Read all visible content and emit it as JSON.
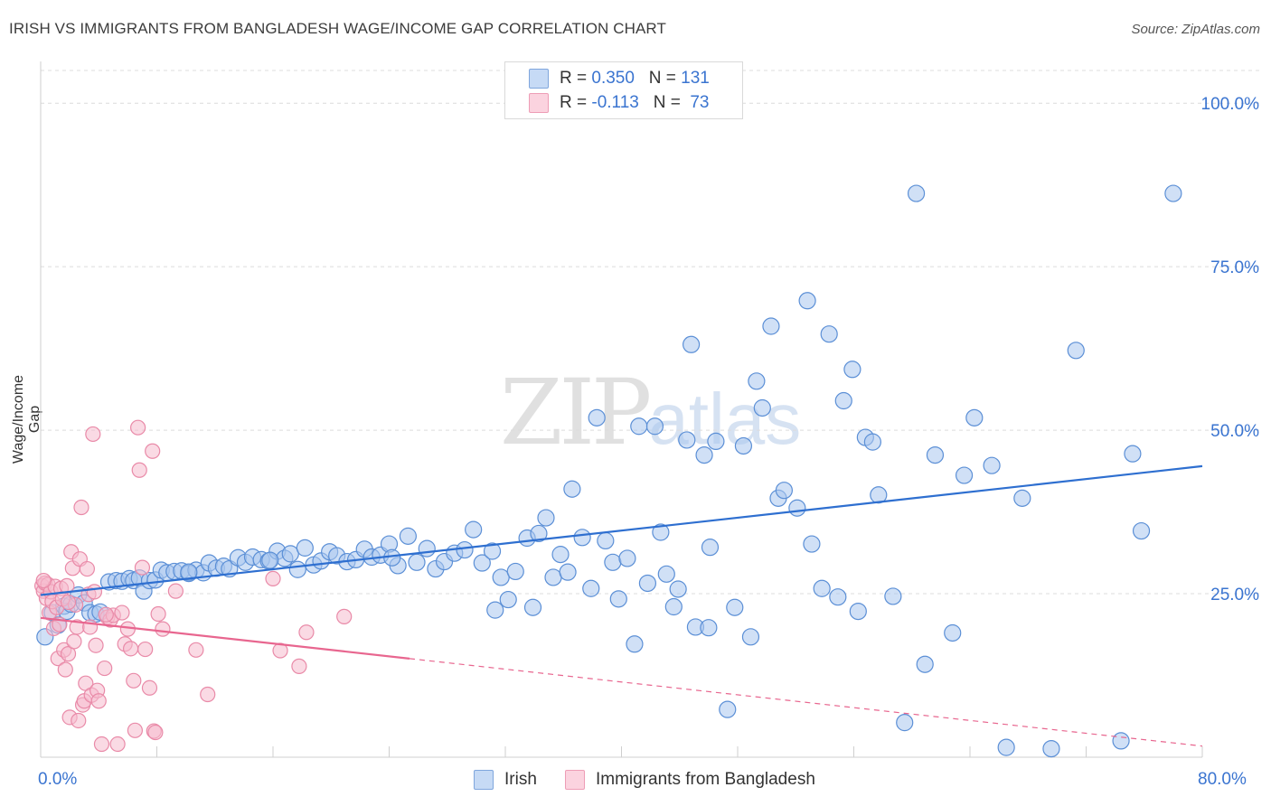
{
  "title": "IRISH VS IMMIGRANTS FROM BANGLADESH WAGE/INCOME GAP CORRELATION CHART",
  "source": "Source: ZipAtlas.com",
  "watermark": {
    "main": "ZIP",
    "sub": "atlas"
  },
  "colors": {
    "irish_fill": "#a9c6ee",
    "irish_stroke": "#5b8fd6",
    "irish_line": "#2e6fd0",
    "bangla_fill": "#f6bccd",
    "bangla_stroke": "#e98aa8",
    "bangla_line": "#e8668f",
    "tick_text": "#3a74d0",
    "grid": "#dcdcdc"
  },
  "legend": {
    "irish": {
      "r_label": "R = ",
      "r_value": "0.350",
      "n_label": "N = ",
      "n_value": "131"
    },
    "bangladesh": {
      "r_label": "R = ",
      "r_value": "-0.113",
      "n_label": "N = ",
      "n_value": " 73"
    }
  },
  "chart_data": {
    "type": "scatter",
    "title": "IRISH VS IMMIGRANTS FROM BANGLADESH WAGE/INCOME GAP CORRELATION CHART",
    "xlabel": "",
    "ylabel": "Wage/Income Gap",
    "xlim": [
      0,
      80
    ],
    "ylim": [
      0,
      105
    ],
    "x_tick_labels": {
      "min": "0.0%",
      "max": "80.0%"
    },
    "y_ticks": [
      25,
      50,
      75,
      100
    ],
    "y_tick_labels": [
      "25.0%",
      "50.0%",
      "75.0%",
      "100.0%"
    ],
    "grid": true,
    "legend_position": "top-center",
    "series": [
      {
        "name": "Irish",
        "r": 0.35,
        "n": 131,
        "trend": {
          "x0": 0,
          "y0": 24.8,
          "x1": 80,
          "y1": 44.5,
          "solid_until": 80
        },
        "points": [
          [
            0.3,
            18.4
          ],
          [
            0.8,
            22.1
          ],
          [
            1.2,
            20.2
          ],
          [
            1.6,
            23.1
          ],
          [
            1.8,
            22.3
          ],
          [
            2.1,
            23.4
          ],
          [
            2.6,
            24.8
          ],
          [
            3.0,
            23.6
          ],
          [
            3.4,
            22.1
          ],
          [
            3.8,
            21.9
          ],
          [
            4.1,
            22.2
          ],
          [
            4.7,
            26.8
          ],
          [
            5.2,
            27.0
          ],
          [
            5.6,
            26.9
          ],
          [
            6.1,
            27.3
          ],
          [
            6.4,
            27.0
          ],
          [
            6.8,
            27.4
          ],
          [
            7.1,
            25.4
          ],
          [
            7.5,
            27.0
          ],
          [
            7.9,
            27.1
          ],
          [
            8.3,
            28.6
          ],
          [
            8.7,
            28.2
          ],
          [
            9.2,
            28.4
          ],
          [
            9.7,
            28.5
          ],
          [
            10.2,
            28.1
          ],
          [
            10.7,
            28.6
          ],
          [
            11.2,
            28.2
          ],
          [
            11.6,
            29.7
          ],
          [
            12.1,
            28.9
          ],
          [
            12.6,
            29.2
          ],
          [
            13.0,
            28.8
          ],
          [
            13.6,
            30.5
          ],
          [
            14.1,
            29.8
          ],
          [
            14.6,
            30.6
          ],
          [
            15.2,
            30.2
          ],
          [
            15.7,
            30.0
          ],
          [
            16.3,
            31.5
          ],
          [
            16.8,
            30.4
          ],
          [
            17.2,
            31.1
          ],
          [
            17.7,
            28.7
          ],
          [
            18.2,
            32.0
          ],
          [
            18.8,
            29.4
          ],
          [
            19.3,
            30.0
          ],
          [
            19.9,
            31.4
          ],
          [
            20.4,
            30.8
          ],
          [
            21.1,
            29.9
          ],
          [
            21.7,
            30.2
          ],
          [
            22.3,
            31.8
          ],
          [
            22.8,
            30.6
          ],
          [
            23.4,
            30.9
          ],
          [
            24.0,
            32.6
          ],
          [
            24.6,
            29.3
          ],
          [
            25.3,
            33.8
          ],
          [
            25.9,
            29.8
          ],
          [
            26.6,
            31.9
          ],
          [
            27.2,
            28.8
          ],
          [
            27.8,
            29.9
          ],
          [
            28.5,
            31.2
          ],
          [
            29.2,
            31.7
          ],
          [
            29.8,
            34.8
          ],
          [
            30.4,
            29.7
          ],
          [
            31.1,
            31.5
          ],
          [
            31.7,
            27.5
          ],
          [
            32.2,
            24.1
          ],
          [
            32.7,
            28.4
          ],
          [
            33.5,
            33.5
          ],
          [
            33.9,
            22.9
          ],
          [
            34.3,
            34.2
          ],
          [
            34.8,
            36.6
          ],
          [
            35.3,
            27.5
          ],
          [
            35.8,
            31.0
          ],
          [
            36.3,
            28.3
          ],
          [
            36.6,
            41.0
          ],
          [
            37.3,
            33.6
          ],
          [
            37.9,
            25.8
          ],
          [
            38.3,
            51.9
          ],
          [
            38.9,
            33.1
          ],
          [
            39.4,
            29.8
          ],
          [
            39.8,
            24.2
          ],
          [
            40.4,
            30.4
          ],
          [
            40.9,
            17.3
          ],
          [
            41.2,
            50.6
          ],
          [
            41.8,
            26.6
          ],
          [
            42.3,
            50.6
          ],
          [
            42.7,
            34.4
          ],
          [
            43.1,
            28.0
          ],
          [
            43.6,
            23.0
          ],
          [
            43.9,
            25.7
          ],
          [
            44.5,
            48.5
          ],
          [
            44.8,
            63.1
          ],
          [
            45.1,
            19.9
          ],
          [
            45.7,
            46.2
          ],
          [
            46.0,
            19.8
          ],
          [
            46.5,
            48.3
          ],
          [
            47.3,
            7.3
          ],
          [
            47.8,
            22.9
          ],
          [
            48.4,
            47.6
          ],
          [
            48.9,
            18.4
          ],
          [
            49.3,
            57.5
          ],
          [
            49.7,
            53.4
          ],
          [
            50.3,
            65.9
          ],
          [
            50.8,
            39.6
          ],
          [
            51.2,
            40.8
          ],
          [
            52.1,
            38.1
          ],
          [
            52.8,
            69.8
          ],
          [
            53.1,
            32.6
          ],
          [
            53.8,
            25.8
          ],
          [
            54.3,
            64.7
          ],
          [
            54.9,
            24.5
          ],
          [
            55.3,
            54.5
          ],
          [
            55.9,
            59.3
          ],
          [
            56.3,
            22.3
          ],
          [
            56.8,
            48.9
          ],
          [
            57.3,
            48.2
          ],
          [
            57.7,
            40.1
          ],
          [
            58.7,
            24.6
          ],
          [
            59.5,
            5.3
          ],
          [
            60.3,
            86.2
          ],
          [
            60.9,
            14.2
          ],
          [
            61.6,
            46.2
          ],
          [
            62.8,
            19.0
          ],
          [
            63.6,
            43.1
          ],
          [
            64.3,
            51.9
          ],
          [
            65.5,
            44.6
          ],
          [
            66.5,
            1.5
          ],
          [
            67.6,
            39.6
          ],
          [
            69.6,
            1.3
          ],
          [
            71.3,
            62.2
          ],
          [
            74.4,
            2.5
          ],
          [
            75.8,
            34.6
          ],
          [
            75.2,
            46.4
          ],
          [
            78.0,
            86.2
          ],
          [
            10.2,
            28.3
          ],
          [
            15.8,
            30.1
          ],
          [
            24.2,
            30.5
          ],
          [
            31.3,
            22.5
          ],
          [
            46.1,
            32.1
          ]
        ]
      },
      {
        "name": "Immigrants from Bangladesh",
        "r": -0.113,
        "n": 73,
        "trend": {
          "x0": 0,
          "y0": 21.3,
          "x1": 80,
          "y1": 1.7,
          "solid_until": 25.4
        },
        "points": [
          [
            0.1,
            26.2
          ],
          [
            0.2,
            25.4
          ],
          [
            0.3,
            26.6
          ],
          [
            0.4,
            24.3
          ],
          [
            0.5,
            26.4
          ],
          [
            0.6,
            22.1
          ],
          [
            0.7,
            25.3
          ],
          [
            0.8,
            23.8
          ],
          [
            0.9,
            19.7
          ],
          [
            1.0,
            26.1
          ],
          [
            1.1,
            22.9
          ],
          [
            1.2,
            15.1
          ],
          [
            1.3,
            20.3
          ],
          [
            1.4,
            25.8
          ],
          [
            1.5,
            24.2
          ],
          [
            1.6,
            16.4
          ],
          [
            1.7,
            13.4
          ],
          [
            1.8,
            26.2
          ],
          [
            1.9,
            15.8
          ],
          [
            2.0,
            6.1
          ],
          [
            2.1,
            31.4
          ],
          [
            2.2,
            28.9
          ],
          [
            2.3,
            17.7
          ],
          [
            2.4,
            23.3
          ],
          [
            2.5,
            19.9
          ],
          [
            2.6,
            5.6
          ],
          [
            2.7,
            30.3
          ],
          [
            2.8,
            38.2
          ],
          [
            2.9,
            8.0
          ],
          [
            3.0,
            8.6
          ],
          [
            3.1,
            11.3
          ],
          [
            3.2,
            28.8
          ],
          [
            3.3,
            24.9
          ],
          [
            3.4,
            19.9
          ],
          [
            3.5,
            9.5
          ],
          [
            3.6,
            49.4
          ],
          [
            3.7,
            25.3
          ],
          [
            3.8,
            17.1
          ],
          [
            3.9,
            10.2
          ],
          [
            4.0,
            8.6
          ],
          [
            4.2,
            2.0
          ],
          [
            4.4,
            13.6
          ],
          [
            4.6,
            21.4
          ],
          [
            4.8,
            21.0
          ],
          [
            5.0,
            21.7
          ],
          [
            5.3,
            2.0
          ],
          [
            5.6,
            22.1
          ],
          [
            5.8,
            17.3
          ],
          [
            6.0,
            19.6
          ],
          [
            6.2,
            16.6
          ],
          [
            6.4,
            11.7
          ],
          [
            6.5,
            4.1
          ],
          [
            6.7,
            50.4
          ],
          [
            6.8,
            43.9
          ],
          [
            7.0,
            29.0
          ],
          [
            7.2,
            16.5
          ],
          [
            7.5,
            10.6
          ],
          [
            7.7,
            46.8
          ],
          [
            7.8,
            4.0
          ],
          [
            7.9,
            3.8
          ],
          [
            8.1,
            21.9
          ],
          [
            8.4,
            19.6
          ],
          [
            9.3,
            25.4
          ],
          [
            10.7,
            16.4
          ],
          [
            11.5,
            9.6
          ],
          [
            16.0,
            27.3
          ],
          [
            16.5,
            16.3
          ],
          [
            17.8,
            13.9
          ],
          [
            18.3,
            19.1
          ],
          [
            20.9,
            21.5
          ],
          [
            0.2,
            27.0
          ],
          [
            1.9,
            23.7
          ],
          [
            4.5,
            21.8
          ]
        ]
      }
    ]
  }
}
